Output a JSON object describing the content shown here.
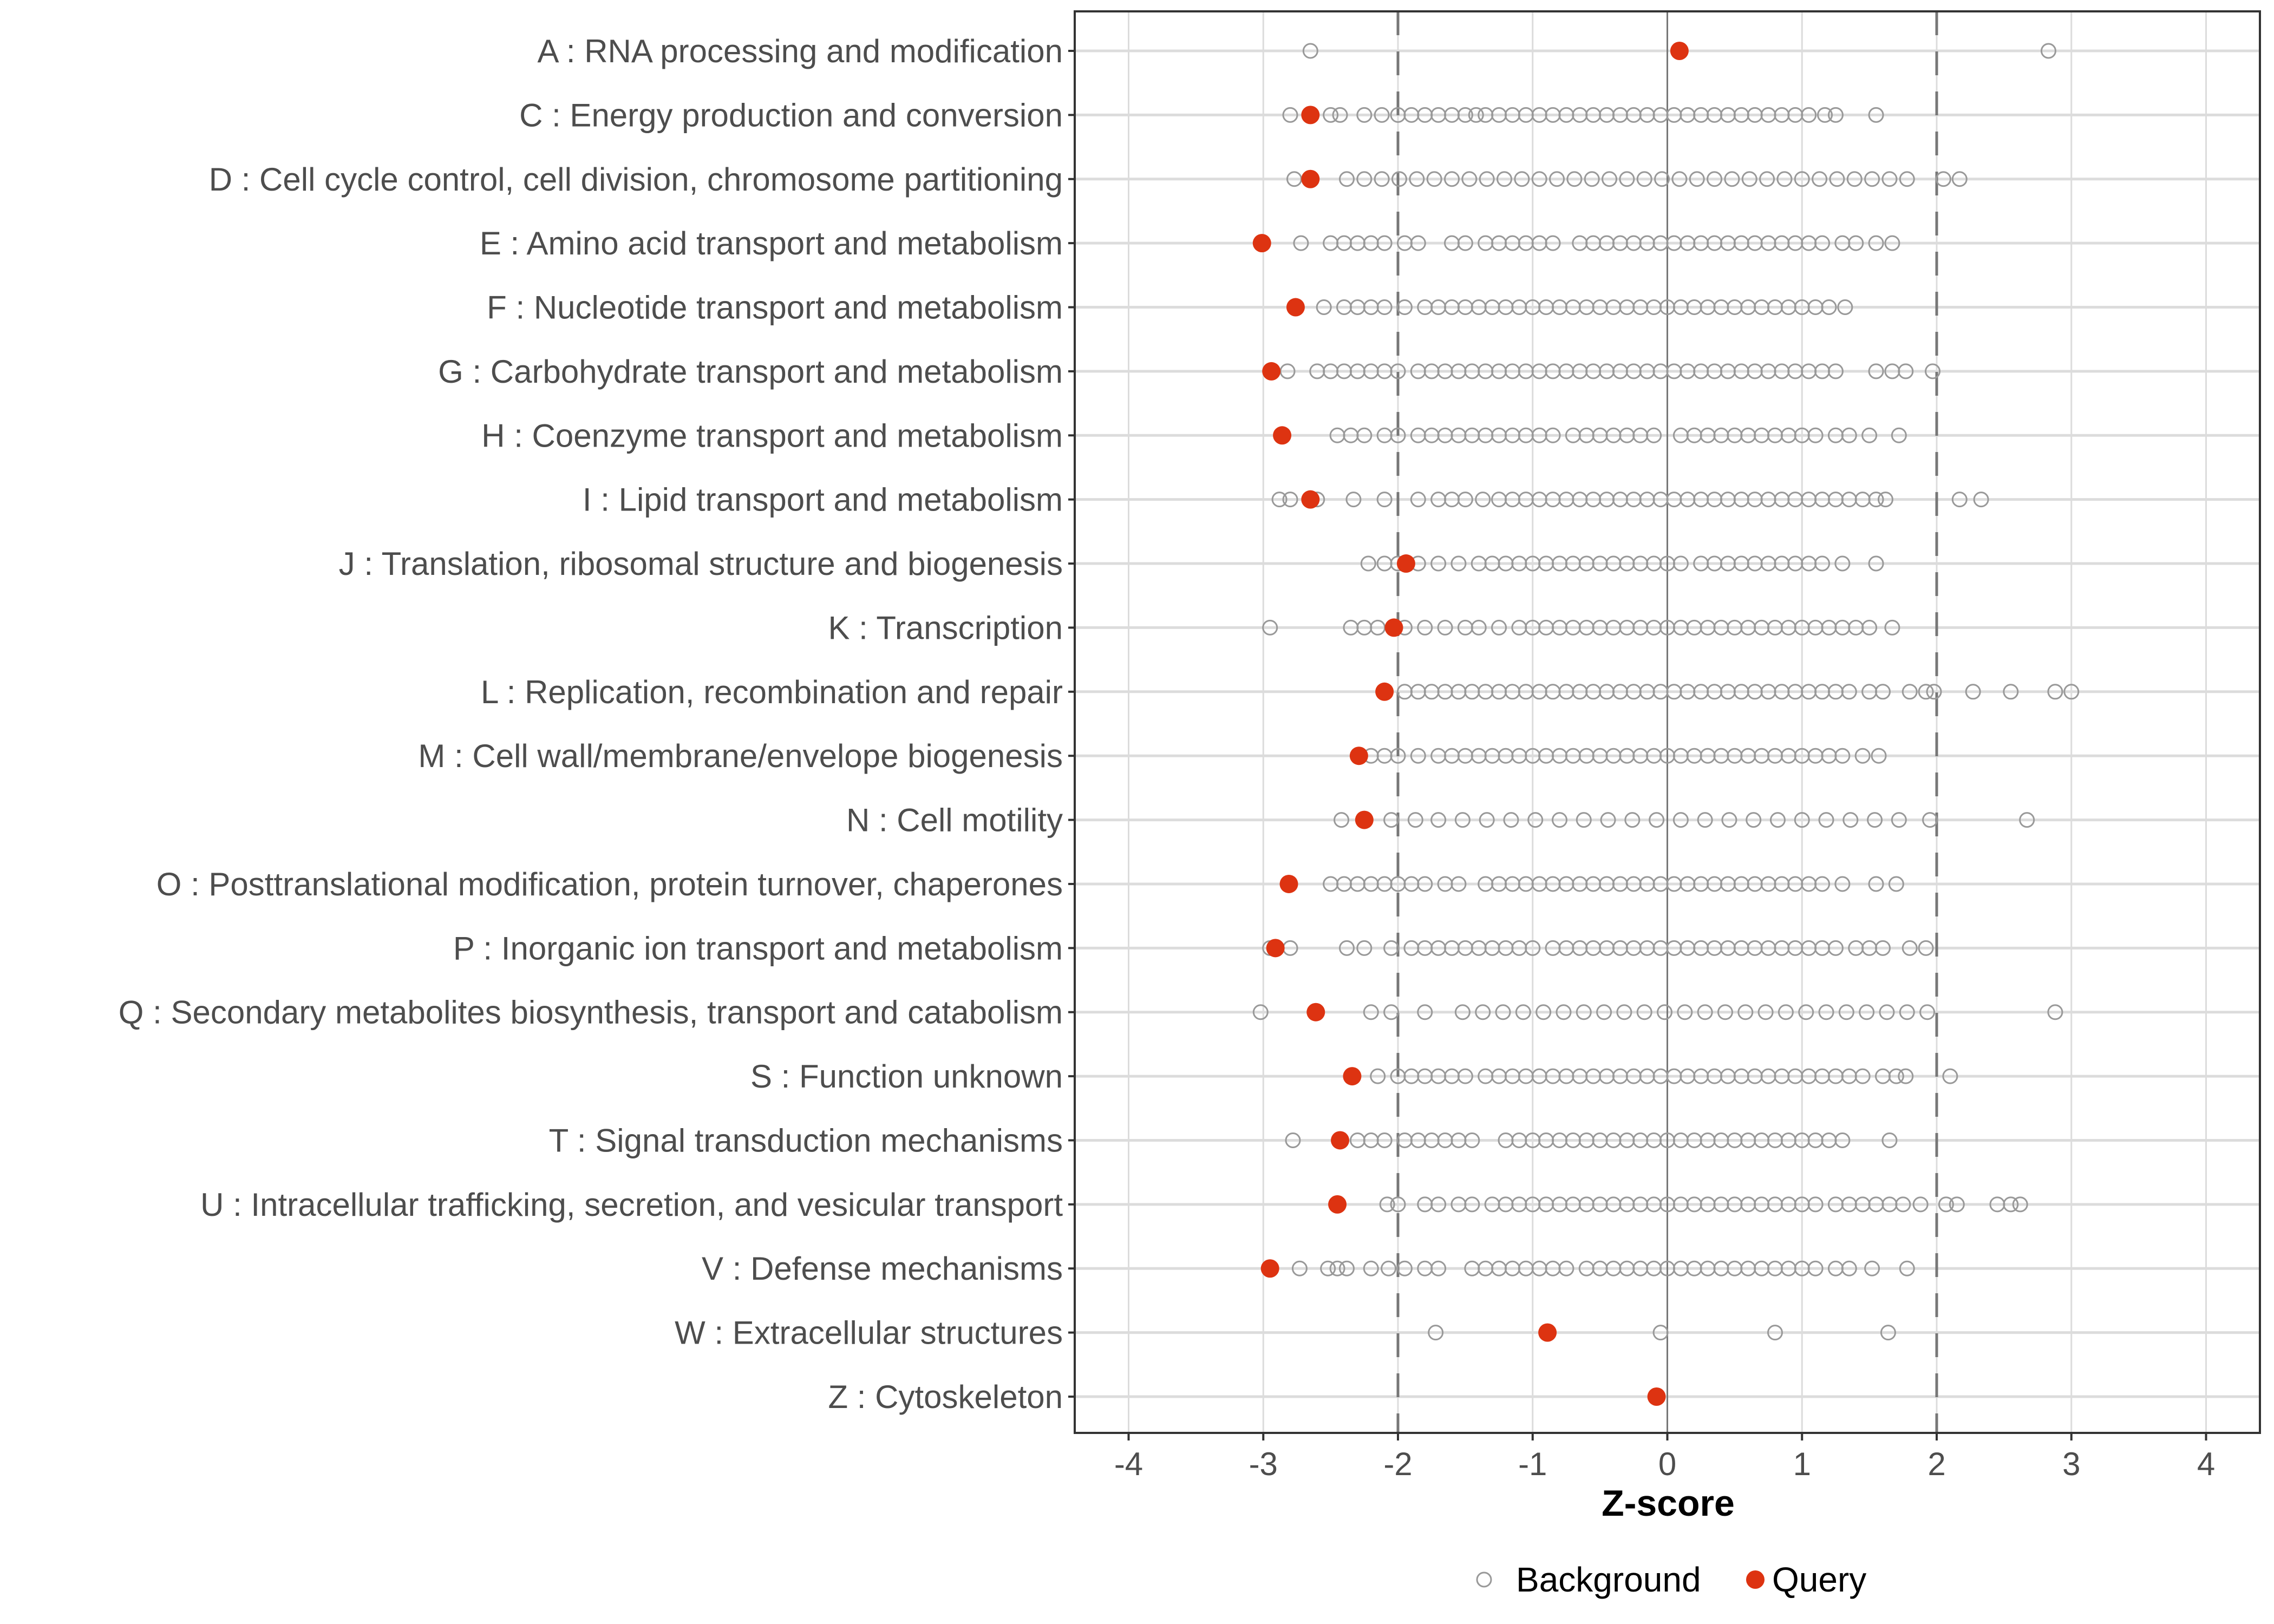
{
  "chart_data": {
    "type": "scatter",
    "title": "",
    "xlabel": "Z-score",
    "ylabel": "",
    "xlim": [
      -4.4,
      4.4
    ],
    "x_ticks": [
      -4,
      -3,
      -2,
      -1,
      0,
      1,
      2,
      3,
      4
    ],
    "reference_lines": {
      "dashed": [
        -2,
        2
      ],
      "solid": [
        0
      ]
    },
    "grid": true,
    "legend": {
      "placement": "bottom",
      "entries": [
        {
          "name": "Background",
          "marker": "open-circle",
          "color": "#999999"
        },
        {
          "name": "Query",
          "marker": "filled-circle",
          "color": "#dd3311"
        }
      ]
    },
    "categories": [
      {
        "label": "A : RNA processing and modification",
        "query": 0.09,
        "background": [
          -2.65,
          2.83
        ]
      },
      {
        "label": "C : Energy production and conversion",
        "query": -2.65,
        "background": [
          -2.8,
          -2.5,
          -2.43,
          -2.25,
          -2.12,
          -2.0,
          -1.9,
          -1.8,
          -1.7,
          -1.6,
          -1.5,
          -1.42,
          -1.35,
          -1.25,
          -1.15,
          -1.05,
          -0.95,
          -0.85,
          -0.75,
          -0.65,
          -0.55,
          -0.45,
          -0.35,
          -0.25,
          -0.15,
          -0.05,
          0.05,
          0.15,
          0.25,
          0.35,
          0.45,
          0.55,
          0.65,
          0.75,
          0.85,
          0.95,
          1.05,
          1.17,
          1.25,
          1.55
        ]
      },
      {
        "label": "D : Cell cycle control, cell division, chromosome partitioning",
        "query": -2.65,
        "background": [
          -2.77,
          -2.38,
          -2.25,
          -2.12,
          -1.99,
          -1.86,
          -1.73,
          -1.6,
          -1.47,
          -1.34,
          -1.21,
          -1.08,
          -0.95,
          -0.82,
          -0.69,
          -0.56,
          -0.43,
          -0.3,
          -0.17,
          -0.04,
          0.09,
          0.22,
          0.35,
          0.48,
          0.61,
          0.74,
          0.87,
          1.0,
          1.13,
          1.26,
          1.39,
          1.52,
          1.65,
          1.78,
          2.05,
          2.17
        ]
      },
      {
        "label": "E : Amino acid transport and metabolism",
        "query": -3.01,
        "background": [
          -2.72,
          -2.5,
          -2.4,
          -2.3,
          -2.2,
          -2.1,
          -1.95,
          -1.85,
          -1.6,
          -1.5,
          -1.35,
          -1.25,
          -1.15,
          -1.05,
          -0.95,
          -0.85,
          -0.65,
          -0.55,
          -0.45,
          -0.35,
          -0.25,
          -0.15,
          -0.05,
          0.05,
          0.15,
          0.25,
          0.35,
          0.45,
          0.55,
          0.65,
          0.75,
          0.85,
          0.95,
          1.05,
          1.15,
          1.3,
          1.4,
          1.55,
          1.67
        ]
      },
      {
        "label": "F : Nucleotide transport and metabolism",
        "query": -2.76,
        "background": [
          -2.55,
          -2.4,
          -2.3,
          -2.2,
          -2.1,
          -1.95,
          -1.8,
          -1.7,
          -1.6,
          -1.5,
          -1.4,
          -1.3,
          -1.2,
          -1.1,
          -1.0,
          -0.9,
          -0.8,
          -0.7,
          -0.6,
          -0.5,
          -0.4,
          -0.3,
          -0.2,
          -0.1,
          0.0,
          0.1,
          0.2,
          0.3,
          0.4,
          0.5,
          0.6,
          0.7,
          0.8,
          0.9,
          1.0,
          1.1,
          1.2,
          1.32
        ]
      },
      {
        "label": "G : Carbohydrate transport and metabolism",
        "query": -2.94,
        "background": [
          -2.82,
          -2.6,
          -2.5,
          -2.4,
          -2.3,
          -2.2,
          -2.1,
          -2.0,
          -1.85,
          -1.75,
          -1.65,
          -1.55,
          -1.45,
          -1.35,
          -1.25,
          -1.15,
          -1.05,
          -0.95,
          -0.85,
          -0.75,
          -0.65,
          -0.55,
          -0.45,
          -0.35,
          -0.25,
          -0.15,
          -0.05,
          0.05,
          0.15,
          0.25,
          0.35,
          0.45,
          0.55,
          0.65,
          0.75,
          0.85,
          0.95,
          1.05,
          1.15,
          1.25,
          1.55,
          1.67,
          1.77,
          1.97
        ]
      },
      {
        "label": "H : Coenzyme transport and metabolism",
        "query": -2.86,
        "background": [
          -2.45,
          -2.35,
          -2.25,
          -2.1,
          -2.0,
          -1.85,
          -1.75,
          -1.65,
          -1.55,
          -1.45,
          -1.35,
          -1.25,
          -1.15,
          -1.05,
          -0.95,
          -0.85,
          -0.7,
          -0.6,
          -0.5,
          -0.4,
          -0.3,
          -0.2,
          -0.1,
          0.1,
          0.2,
          0.3,
          0.4,
          0.5,
          0.6,
          0.7,
          0.8,
          0.9,
          1.0,
          1.1,
          1.25,
          1.35,
          1.5,
          1.72
        ]
      },
      {
        "label": "I : Lipid transport and metabolism",
        "query": -2.65,
        "background": [
          -2.88,
          -2.8,
          -2.6,
          -2.33,
          -2.1,
          -1.85,
          -1.7,
          -1.6,
          -1.5,
          -1.37,
          -1.25,
          -1.15,
          -1.05,
          -0.95,
          -0.85,
          -0.75,
          -0.65,
          -0.55,
          -0.45,
          -0.35,
          -0.25,
          -0.15,
          -0.05,
          0.05,
          0.15,
          0.25,
          0.35,
          0.45,
          0.55,
          0.65,
          0.75,
          0.85,
          0.95,
          1.05,
          1.15,
          1.25,
          1.35,
          1.45,
          1.55,
          1.62,
          2.17,
          2.33
        ]
      },
      {
        "label": "J : Translation, ribosomal structure and biogenesis",
        "query": -1.94,
        "background": [
          -2.22,
          -2.1,
          -2.0,
          -1.85,
          -1.7,
          -1.55,
          -1.4,
          -1.3,
          -1.2,
          -1.1,
          -1.0,
          -0.9,
          -0.8,
          -0.7,
          -0.6,
          -0.5,
          -0.4,
          -0.3,
          -0.2,
          -0.1,
          0.0,
          0.1,
          0.25,
          0.35,
          0.45,
          0.55,
          0.65,
          0.75,
          0.85,
          0.95,
          1.05,
          1.15,
          1.3,
          1.55
        ]
      },
      {
        "label": "K : Transcription",
        "query": -2.03,
        "background": [
          -2.95,
          -2.35,
          -2.25,
          -2.15,
          -1.95,
          -1.8,
          -1.65,
          -1.5,
          -1.4,
          -1.25,
          -1.1,
          -1.0,
          -0.9,
          -0.8,
          -0.7,
          -0.6,
          -0.5,
          -0.4,
          -0.3,
          -0.2,
          -0.1,
          0.0,
          0.1,
          0.2,
          0.3,
          0.4,
          0.5,
          0.6,
          0.7,
          0.8,
          0.9,
          1.0,
          1.1,
          1.2,
          1.3,
          1.4,
          1.5,
          1.67
        ]
      },
      {
        "label": "L : Replication, recombination and repair",
        "query": -2.1,
        "background": [
          -1.95,
          -1.85,
          -1.75,
          -1.65,
          -1.55,
          -1.45,
          -1.35,
          -1.25,
          -1.15,
          -1.05,
          -0.95,
          -0.85,
          -0.75,
          -0.65,
          -0.55,
          -0.45,
          -0.35,
          -0.25,
          -0.15,
          -0.05,
          0.05,
          0.15,
          0.25,
          0.35,
          0.45,
          0.55,
          0.65,
          0.75,
          0.85,
          0.95,
          1.05,
          1.15,
          1.25,
          1.35,
          1.5,
          1.6,
          1.8,
          1.92,
          1.98,
          2.27,
          2.55,
          2.88,
          3.0
        ]
      },
      {
        "label": "M : Cell wall/membrane/envelope biogenesis",
        "query": -2.29,
        "background": [
          -2.2,
          -2.1,
          -2.0,
          -1.85,
          -1.7,
          -1.6,
          -1.5,
          -1.4,
          -1.3,
          -1.2,
          -1.1,
          -1.0,
          -0.9,
          -0.8,
          -0.7,
          -0.6,
          -0.5,
          -0.4,
          -0.3,
          -0.2,
          -0.1,
          0.0,
          0.1,
          0.2,
          0.3,
          0.4,
          0.5,
          0.6,
          0.7,
          0.8,
          0.9,
          1.0,
          1.1,
          1.2,
          1.3,
          1.45,
          1.57
        ]
      },
      {
        "label": "N : Cell motility",
        "query": -2.25,
        "background": [
          -2.42,
          -2.05,
          -1.87,
          -1.7,
          -1.52,
          -1.34,
          -1.16,
          -0.98,
          -0.8,
          -0.62,
          -0.44,
          -0.26,
          -0.08,
          0.1,
          0.28,
          0.46,
          0.64,
          0.82,
          1.0,
          1.18,
          1.36,
          1.54,
          1.72,
          1.95,
          2.67
        ]
      },
      {
        "label": "O : Posttranslational modification, protein turnover, chaperones",
        "query": -2.81,
        "background": [
          -2.5,
          -2.4,
          -2.3,
          -2.2,
          -2.1,
          -2.0,
          -1.9,
          -1.8,
          -1.65,
          -1.55,
          -1.35,
          -1.25,
          -1.15,
          -1.05,
          -0.95,
          -0.85,
          -0.75,
          -0.65,
          -0.55,
          -0.45,
          -0.35,
          -0.25,
          -0.15,
          -0.05,
          0.05,
          0.15,
          0.25,
          0.35,
          0.45,
          0.55,
          0.65,
          0.75,
          0.85,
          0.95,
          1.05,
          1.15,
          1.3,
          1.55,
          1.7
        ]
      },
      {
        "label": "P : Inorganic ion transport and metabolism",
        "query": -2.91,
        "background": [
          -2.95,
          -2.8,
          -2.38,
          -2.25,
          -2.05,
          -1.9,
          -1.8,
          -1.7,
          -1.6,
          -1.5,
          -1.4,
          -1.3,
          -1.2,
          -1.1,
          -1.0,
          -0.85,
          -0.75,
          -0.65,
          -0.55,
          -0.45,
          -0.35,
          -0.25,
          -0.15,
          -0.05,
          0.05,
          0.15,
          0.25,
          0.35,
          0.45,
          0.55,
          0.65,
          0.75,
          0.85,
          0.95,
          1.05,
          1.15,
          1.25,
          1.4,
          1.5,
          1.6,
          1.8,
          1.92
        ]
      },
      {
        "label": "Q : Secondary metabolites biosynthesis, transport and catabolism",
        "query": -2.61,
        "background": [
          -3.02,
          -2.2,
          -2.05,
          -1.8,
          -1.52,
          -1.37,
          -1.22,
          -1.07,
          -0.92,
          -0.77,
          -0.62,
          -0.47,
          -0.32,
          -0.17,
          -0.02,
          0.13,
          0.28,
          0.43,
          0.58,
          0.73,
          0.88,
          1.03,
          1.18,
          1.33,
          1.48,
          1.63,
          1.78,
          1.93,
          2.88
        ]
      },
      {
        "label": "S : Function unknown",
        "query": -2.34,
        "background": [
          -2.15,
          -2.0,
          -1.9,
          -1.8,
          -1.7,
          -1.6,
          -1.5,
          -1.35,
          -1.25,
          -1.15,
          -1.05,
          -0.95,
          -0.85,
          -0.75,
          -0.65,
          -0.55,
          -0.45,
          -0.35,
          -0.25,
          -0.15,
          -0.05,
          0.05,
          0.15,
          0.25,
          0.35,
          0.45,
          0.55,
          0.65,
          0.75,
          0.85,
          0.95,
          1.05,
          1.15,
          1.25,
          1.35,
          1.45,
          1.6,
          1.7,
          1.77,
          2.1
        ]
      },
      {
        "label": "T : Signal transduction mechanisms",
        "query": -2.43,
        "background": [
          -2.78,
          -2.3,
          -2.2,
          -2.1,
          -1.95,
          -1.85,
          -1.75,
          -1.65,
          -1.55,
          -1.45,
          -1.2,
          -1.1,
          -1.0,
          -0.9,
          -0.8,
          -0.7,
          -0.6,
          -0.5,
          -0.4,
          -0.3,
          -0.2,
          -0.1,
          0.0,
          0.1,
          0.2,
          0.3,
          0.4,
          0.5,
          0.6,
          0.7,
          0.8,
          0.9,
          1.0,
          1.1,
          1.2,
          1.3,
          1.65
        ]
      },
      {
        "label": "U : Intracellular trafficking, secretion, and vesicular transport",
        "query": -2.45,
        "background": [
          -2.08,
          -2.0,
          -1.8,
          -1.7,
          -1.55,
          -1.45,
          -1.3,
          -1.2,
          -1.1,
          -1.0,
          -0.9,
          -0.8,
          -0.7,
          -0.6,
          -0.5,
          -0.4,
          -0.3,
          -0.2,
          -0.1,
          0.0,
          0.1,
          0.2,
          0.3,
          0.4,
          0.5,
          0.6,
          0.7,
          0.8,
          0.9,
          1.0,
          1.1,
          1.25,
          1.35,
          1.45,
          1.55,
          1.65,
          1.75,
          1.88,
          2.07,
          2.15,
          2.45,
          2.55,
          2.62
        ]
      },
      {
        "label": "V : Defense mechanisms",
        "query": -2.95,
        "background": [
          -2.73,
          -2.52,
          -2.45,
          -2.38,
          -2.2,
          -2.07,
          -1.95,
          -1.8,
          -1.7,
          -1.45,
          -1.35,
          -1.25,
          -1.15,
          -1.05,
          -0.95,
          -0.85,
          -0.75,
          -0.6,
          -0.5,
          -0.4,
          -0.3,
          -0.2,
          -0.1,
          0.0,
          0.1,
          0.2,
          0.3,
          0.4,
          0.5,
          0.6,
          0.7,
          0.8,
          0.9,
          1.0,
          1.1,
          1.25,
          1.35,
          1.52,
          1.78
        ]
      },
      {
        "label": "W : Extracellular structures",
        "query": -0.89,
        "background": [
          -1.72,
          -0.05,
          0.8,
          1.64
        ]
      },
      {
        "label": "Z : Cytoskeleton",
        "query": -0.08,
        "background": []
      }
    ]
  }
}
